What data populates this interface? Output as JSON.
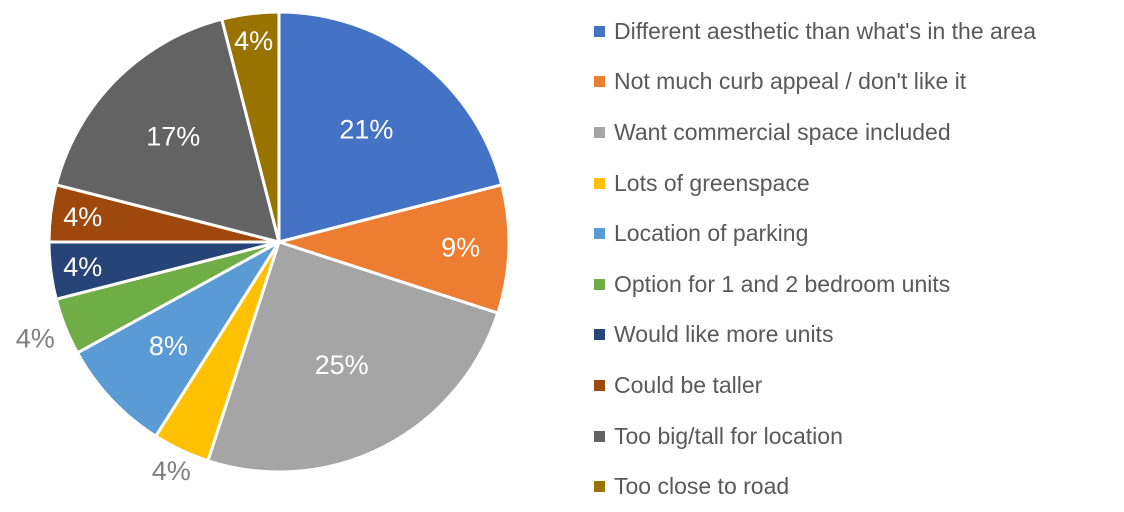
{
  "chart_data": {
    "type": "pie",
    "title": "",
    "slices": [
      {
        "label": "Different aesthetic than what's in the area",
        "value": 21,
        "display": "21%",
        "color": "#4472C4"
      },
      {
        "label": "Not much curb appeal / don't like it",
        "value": 9,
        "display": "9%",
        "color": "#ED7D31"
      },
      {
        "label": "Want commercial space included",
        "value": 25,
        "display": "25%",
        "color": "#A5A5A5"
      },
      {
        "label": "Lots of greenspace",
        "value": 4,
        "display": "4%",
        "color": "#FFC000"
      },
      {
        "label": "Location of parking",
        "value": 8,
        "display": "8%",
        "color": "#5B9BD5"
      },
      {
        "label": "Option for 1 and 2 bedroom units",
        "value": 4,
        "display": "4%",
        "color": "#70AD47"
      },
      {
        "label": "Would like more units",
        "value": 4,
        "display": "4%",
        "color": "#264478"
      },
      {
        "label": "Could be taller",
        "value": 4,
        "display": "4%",
        "color": "#9E480E"
      },
      {
        "label": "Too big/tall for location",
        "value": 17,
        "display": "17%",
        "color": "#636363"
      },
      {
        "label": "Too close to road",
        "value": 4,
        "display": "4%",
        "color": "#997300"
      }
    ],
    "legend_position": "right"
  }
}
